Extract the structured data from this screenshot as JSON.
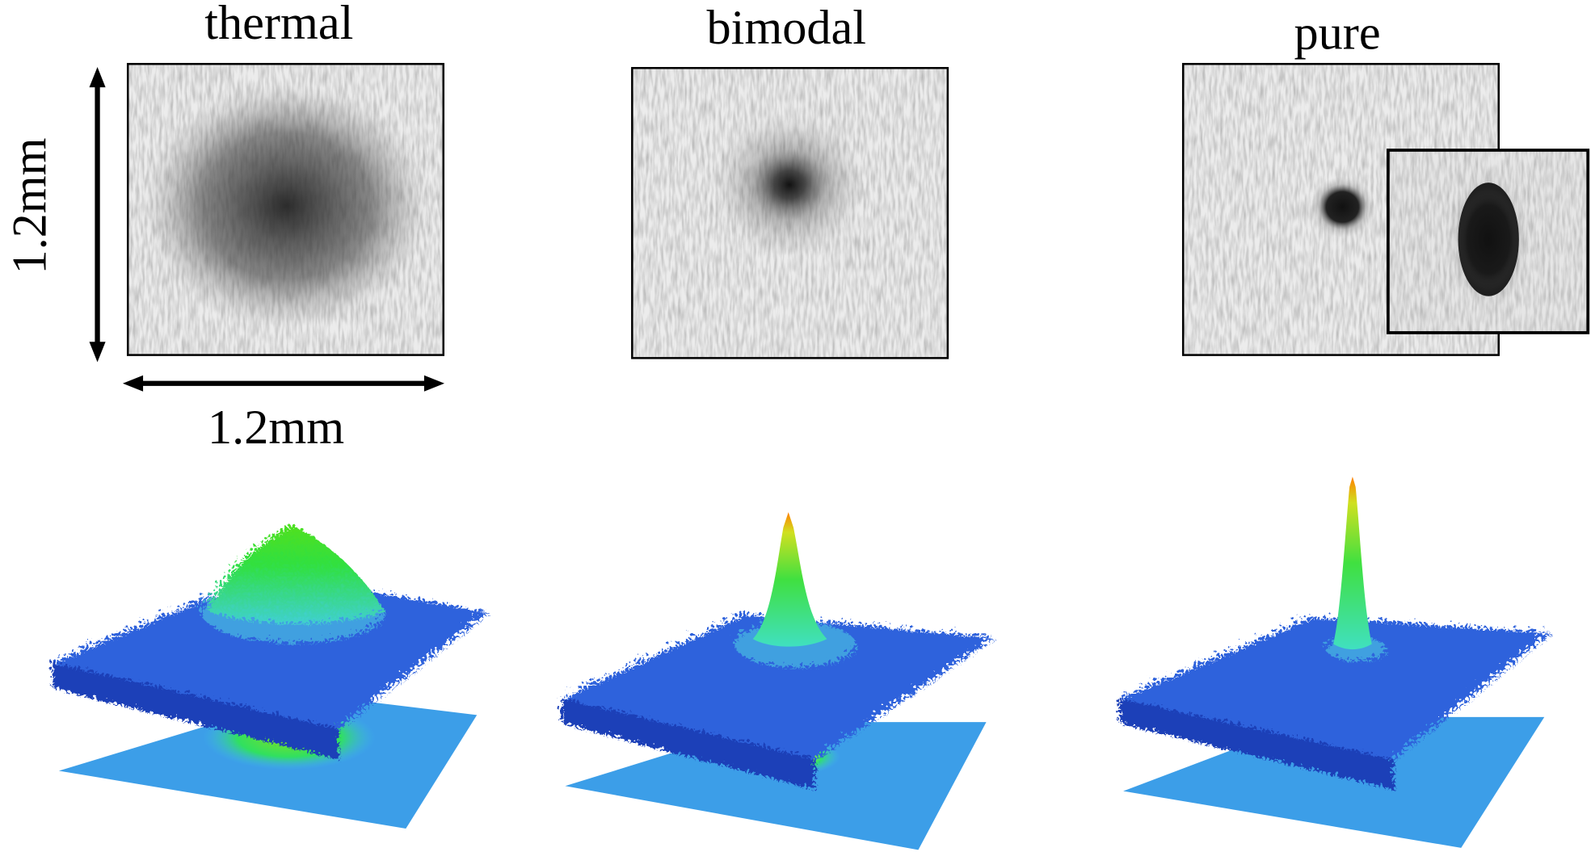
{
  "panels": [
    {
      "label": "thermal"
    },
    {
      "label": "bimodal"
    },
    {
      "label": "pure"
    }
  ],
  "scale": {
    "vertical": "1.2mm",
    "horizontal": "1.2mm"
  }
}
